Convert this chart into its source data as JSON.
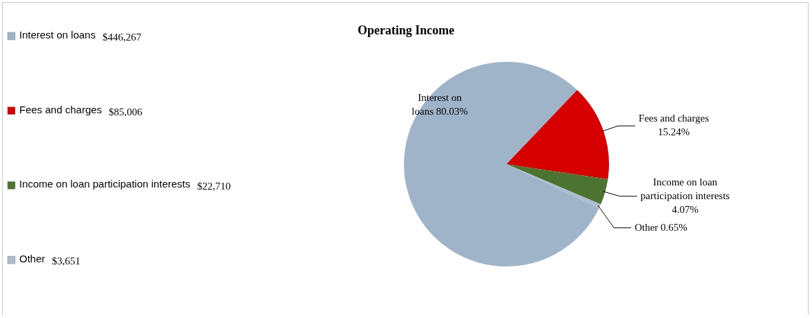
{
  "chart_data": {
    "type": "pie",
    "title": "Operating Income",
    "categories": [
      "Interest on loans",
      "Fees and charges",
      "Income on loan participation interests",
      "Other"
    ],
    "values": [
      446267,
      85006,
      22710,
      3651
    ],
    "value_labels": [
      "$446,267",
      "$85,006",
      "$22,710",
      "$3,651"
    ],
    "colors": [
      "#a0b4c9",
      "#d60000",
      "#4c7332",
      "#aebbd0"
    ],
    "annotations": [
      "80.03%",
      "15.24%",
      "4.07%",
      "0.65%"
    ],
    "legend": "left"
  }
}
